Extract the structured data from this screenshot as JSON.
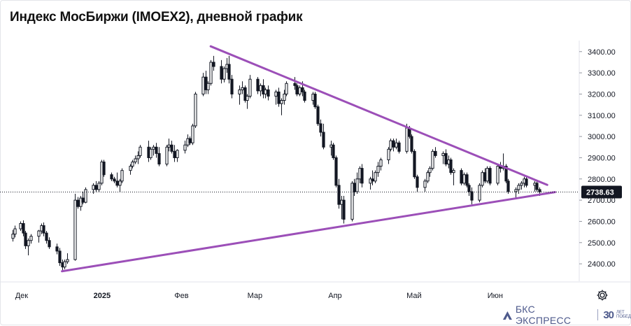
{
  "title": "Индекс МосБиржи (IMOEX2), дневной график",
  "chart_data": {
    "type": "candlestick",
    "instrument": "IMOEX2",
    "timeframe": "дневной",
    "x_labels": [
      {
        "label": "Дек",
        "day": 0
      },
      {
        "label": "2025",
        "day": 30,
        "bold": true
      },
      {
        "label": "Фев",
        "day": 61
      },
      {
        "label": "Мар",
        "day": 89
      },
      {
        "label": "Апр",
        "day": 120
      },
      {
        "label": "Май",
        "day": 150
      },
      {
        "label": "Июн",
        "day": 181
      }
    ],
    "y_ticks": [
      2400,
      2500,
      2600,
      2700,
      2800,
      2900,
      3000,
      3100,
      3200,
      3300,
      3400
    ],
    "y_tick_labels": [
      "2400.00",
      "2500.00",
      "2600.00",
      "2700.00",
      "2800.00",
      "2900.00",
      "3000.00",
      "3100.00",
      "3200.00",
      "3300.00",
      "3400.00"
    ],
    "ylim": [
      2318,
      3452
    ],
    "xlim": [
      -1,
      217
    ],
    "last_price": 2738.63,
    "last_price_label": "2738.63",
    "last_price_color": "#131722",
    "candle_color": "#131722",
    "trendline_color": "#9c4fb8",
    "trendlines": [
      {
        "name": "resistance",
        "from": {
          "day": 76,
          "value": 3425
        },
        "to": {
          "day": 205,
          "value": 2772
        }
      },
      {
        "name": "support",
        "from": {
          "day": 19,
          "value": 2365
        },
        "to": {
          "day": 208,
          "value": 2738
        }
      }
    ],
    "ohlc": [
      [
        0,
        2520,
        2560,
        2505,
        2540
      ],
      [
        1,
        2540,
        2580,
        2525,
        2565
      ],
      [
        3,
        2565,
        2600,
        2555,
        2590
      ],
      [
        4,
        2590,
        2605,
        2530,
        2545
      ],
      [
        5,
        2545,
        2555,
        2470,
        2485
      ],
      [
        6,
        2485,
        2520,
        2440,
        2510
      ],
      [
        7,
        2510,
        2540,
        2495,
        2530
      ],
      [
        10,
        2530,
        2560,
        2500,
        2555
      ],
      [
        11,
        2555,
        2590,
        2540,
        2580
      ],
      [
        12,
        2580,
        2595,
        2530,
        2545
      ],
      [
        13,
        2545,
        2555,
        2495,
        2510
      ],
      [
        14,
        2510,
        2525,
        2470,
        2480
      ],
      [
        17,
        2480,
        2495,
        2445,
        2460
      ],
      [
        18,
        2460,
        2475,
        2390,
        2405
      ],
      [
        19,
        2405,
        2420,
        2370,
        2385
      ],
      [
        20,
        2385,
        2420,
        2375,
        2410
      ],
      [
        21,
        2410,
        2450,
        2400,
        2420
      ],
      [
        24,
        2420,
        2730,
        2415,
        2700
      ],
      [
        25,
        2700,
        2715,
        2660,
        2670
      ],
      [
        26,
        2670,
        2720,
        2650,
        2710
      ],
      [
        27,
        2710,
        2740,
        2680,
        2690
      ],
      [
        28,
        2690,
        2760,
        2685,
        2750
      ],
      [
        31,
        2750,
        2780,
        2730,
        2770
      ],
      [
        32,
        2770,
        2790,
        2740,
        2750
      ],
      [
        33,
        2750,
        2790,
        2740,
        2780
      ],
      [
        34,
        2780,
        2890,
        2770,
        2880
      ],
      [
        35,
        2880,
        2890,
        2810,
        2820
      ],
      [
        38,
        2820,
        2830,
        2790,
        2800
      ],
      [
        39,
        2800,
        2810,
        2780,
        2790
      ],
      [
        40,
        2790,
        2830,
        2760,
        2770
      ],
      [
        41,
        2770,
        2800,
        2740,
        2790
      ],
      [
        42,
        2790,
        2850,
        2780,
        2840
      ],
      [
        45,
        2840,
        2870,
        2820,
        2860
      ],
      [
        46,
        2860,
        2890,
        2850,
        2880
      ],
      [
        47,
        2880,
        2910,
        2870,
        2895
      ],
      [
        48,
        2895,
        2930,
        2870,
        2910
      ],
      [
        49,
        2910,
        2960,
        2900,
        2950
      ],
      [
        52,
        2950,
        2980,
        2880,
        2900
      ],
      [
        53,
        2900,
        2950,
        2890,
        2940
      ],
      [
        54,
        2940,
        2960,
        2910,
        2950
      ],
      [
        55,
        2950,
        2970,
        2900,
        2920
      ],
      [
        56,
        2920,
        2950,
        2860,
        2870
      ],
      [
        59,
        2870,
        2960,
        2860,
        2950
      ],
      [
        60,
        2950,
        2990,
        2930,
        2960
      ],
      [
        61,
        2960,
        2980,
        2920,
        2930
      ],
      [
        62,
        2930,
        2960,
        2880,
        2900
      ],
      [
        63,
        2900,
        2940,
        2880,
        2935
      ],
      [
        66,
        2935,
        2980,
        2920,
        2960
      ],
      [
        67,
        2960,
        3010,
        2950,
        2990
      ],
      [
        68,
        2990,
        3000,
        2960,
        2970
      ],
      [
        69,
        2970,
        3060,
        2960,
        3050
      ],
      [
        70,
        3050,
        3210,
        3040,
        3200
      ],
      [
        73,
        3200,
        3300,
        3190,
        3280
      ],
      [
        74,
        3280,
        3310,
        3200,
        3220
      ],
      [
        75,
        3220,
        3260,
        3200,
        3250
      ],
      [
        76,
        3250,
        3360,
        3240,
        3350
      ],
      [
        77,
        3350,
        3380,
        3310,
        3330
      ],
      [
        80,
        3330,
        3360,
        3250,
        3270
      ],
      [
        81,
        3270,
        3330,
        3255,
        3320
      ],
      [
        82,
        3320,
        3370,
        3300,
        3340
      ],
      [
        83,
        3340,
        3380,
        3250,
        3270
      ],
      [
        84,
        3270,
        3290,
        3180,
        3200
      ],
      [
        87,
        3200,
        3240,
        3150,
        3220
      ],
      [
        88,
        3220,
        3260,
        3200,
        3230
      ],
      [
        89,
        3230,
        3240,
        3160,
        3170
      ],
      [
        90,
        3170,
        3200,
        3130,
        3190
      ],
      [
        91,
        3190,
        3290,
        3180,
        3270
      ],
      [
        94,
        3270,
        3280,
        3200,
        3215
      ],
      [
        95,
        3215,
        3250,
        3190,
        3240
      ],
      [
        96,
        3240,
        3270,
        3180,
        3200
      ],
      [
        97,
        3200,
        3230,
        3180,
        3220
      ],
      [
        98,
        3220,
        3240,
        3170,
        3190
      ],
      [
        101,
        3190,
        3220,
        3150,
        3210
      ],
      [
        102,
        3210,
        3230,
        3140,
        3155
      ],
      [
        103,
        3155,
        3180,
        3100,
        3170
      ],
      [
        104,
        3170,
        3220,
        3150,
        3200
      ],
      [
        105,
        3200,
        3260,
        3190,
        3250
      ],
      [
        108,
        3250,
        3280,
        3220,
        3240
      ],
      [
        109,
        3240,
        3250,
        3190,
        3200
      ],
      [
        110,
        3200,
        3240,
        3190,
        3230
      ],
      [
        111,
        3230,
        3260,
        3190,
        3210
      ],
      [
        112,
        3210,
        3220,
        3160,
        3170
      ],
      [
        115,
        3170,
        3210,
        3150,
        3200
      ],
      [
        116,
        3200,
        3210,
        3130,
        3140
      ],
      [
        117,
        3140,
        3150,
        3050,
        3060
      ],
      [
        118,
        3060,
        3080,
        3000,
        3020
      ],
      [
        119,
        3020,
        3060,
        2940,
        2950
      ],
      [
        122,
        2950,
        2980,
        2910,
        2960
      ],
      [
        123,
        2960,
        2970,
        2890,
        2900
      ],
      [
        124,
        2900,
        2910,
        2760,
        2770
      ],
      [
        125,
        2770,
        2800,
        2660,
        2680
      ],
      [
        126,
        2680,
        2720,
        2610,
        2700
      ],
      [
        127,
        2700,
        2720,
        2590,
        2610
      ],
      [
        130,
        2610,
        2790,
        2600,
        2780
      ],
      [
        131,
        2780,
        2800,
        2720,
        2740
      ],
      [
        132,
        2740,
        2830,
        2730,
        2800
      ],
      [
        133,
        2800,
        2860,
        2780,
        2850
      ],
      [
        134,
        2850,
        2870,
        2760,
        2780
      ],
      [
        137,
        2780,
        2810,
        2750,
        2800
      ],
      [
        138,
        2800,
        2840,
        2770,
        2790
      ],
      [
        139,
        2790,
        2840,
        2780,
        2830
      ],
      [
        140,
        2830,
        2880,
        2810,
        2860
      ],
      [
        141,
        2860,
        2900,
        2840,
        2890
      ],
      [
        144,
        2890,
        2950,
        2870,
        2940
      ],
      [
        145,
        2940,
        2990,
        2930,
        2980
      ],
      [
        146,
        2980,
        2990,
        2930,
        2950
      ],
      [
        147,
        2950,
        2990,
        2940,
        2970
      ],
      [
        148,
        2970,
        2980,
        2920,
        2930
      ],
      [
        151,
        2930,
        3060,
        2920,
        3040
      ],
      [
        152,
        3040,
        3050,
        2990,
        3000
      ],
      [
        153,
        3000,
        3010,
        2920,
        2930
      ],
      [
        154,
        2930,
        2940,
        2800,
        2810
      ],
      [
        155,
        2810,
        2820,
        2740,
        2760
      ],
      [
        158,
        2760,
        2800,
        2740,
        2790
      ],
      [
        159,
        2790,
        2840,
        2780,
        2830
      ],
      [
        160,
        2830,
        2860,
        2810,
        2850
      ],
      [
        161,
        2850,
        2940,
        2840,
        2930
      ],
      [
        162,
        2930,
        2950,
        2900,
        2910
      ],
      [
        165,
        2910,
        2930,
        2870,
        2920
      ],
      [
        166,
        2920,
        2940,
        2860,
        2870
      ],
      [
        167,
        2870,
        2910,
        2850,
        2890
      ],
      [
        168,
        2890,
        2900,
        2820,
        2830
      ],
      [
        169,
        2830,
        2850,
        2770,
        2840
      ],
      [
        172,
        2840,
        2850,
        2770,
        2780
      ],
      [
        173,
        2780,
        2830,
        2770,
        2820
      ],
      [
        174,
        2820,
        2830,
        2760,
        2770
      ],
      [
        175,
        2770,
        2780,
        2720,
        2740
      ],
      [
        176,
        2740,
        2760,
        2680,
        2700
      ],
      [
        179,
        2700,
        2780,
        2690,
        2770
      ],
      [
        180,
        2770,
        2840,
        2760,
        2830
      ],
      [
        181,
        2830,
        2850,
        2780,
        2790
      ],
      [
        182,
        2790,
        2860,
        2780,
        2850
      ],
      [
        183,
        2850,
        2860,
        2770,
        2780
      ],
      [
        186,
        2780,
        2870,
        2770,
        2860
      ],
      [
        187,
        2860,
        2880,
        2830,
        2850
      ],
      [
        188,
        2850,
        2920,
        2840,
        2860
      ],
      [
        189,
        2860,
        2870,
        2780,
        2790
      ],
      [
        190,
        2790,
        2800,
        2730,
        2740
      ],
      [
        193,
        2740,
        2760,
        2710,
        2750
      ],
      [
        194,
        2750,
        2780,
        2730,
        2770
      ],
      [
        195,
        2770,
        2790,
        2750,
        2780
      ],
      [
        196,
        2780,
        2810,
        2760,
        2800
      ],
      [
        197,
        2800,
        2810,
        2760,
        2770
      ],
      [
        200,
        2770,
        2790,
        2740,
        2780
      ],
      [
        201,
        2780,
        2790,
        2740,
        2750
      ],
      [
        202,
        2750,
        2760,
        2720,
        2739
      ]
    ]
  },
  "brand": {
    "name": "БКС ЭКСПРЕСС",
    "number": "30",
    "tagline_line1": "ЛЕТ",
    "tagline_line2": "ПОБЕД",
    "color": "#4e5a8c"
  },
  "icons": {
    "settings": "gear-icon",
    "brand_logo": "bcs-logo-icon"
  }
}
